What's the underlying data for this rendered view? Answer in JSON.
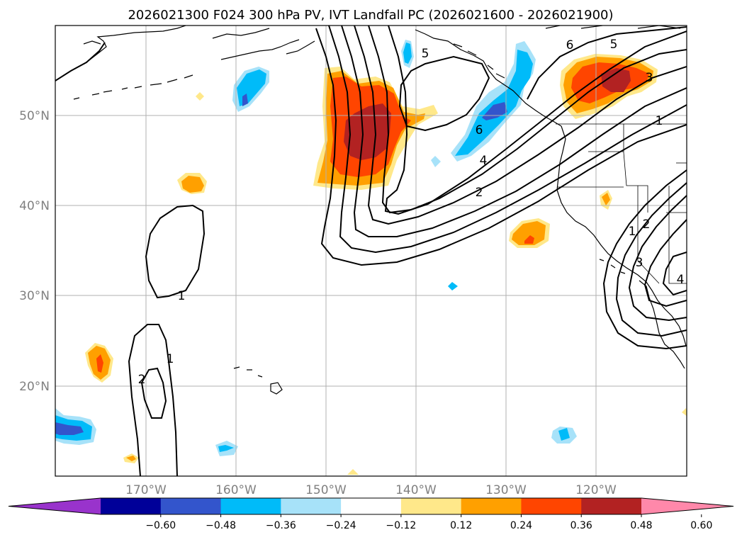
{
  "chart_data": {
    "type": "map_contour_overlay",
    "title": "2026021300 F024 300 hPa PV, IVT Landfall PC (2026021600 - 2026021900)",
    "lon_range": [
      180,
      110
    ],
    "lat_range": [
      10,
      60
    ],
    "lon_ticks": [
      {
        "value": 170,
        "label": "170°W"
      },
      {
        "value": 160,
        "label": "160°W"
      },
      {
        "value": 150,
        "label": "150°W"
      },
      {
        "value": 140,
        "label": "140°W"
      },
      {
        "value": 130,
        "label": "130°W"
      },
      {
        "value": 120,
        "label": "120°W"
      }
    ],
    "lat_ticks": [
      {
        "value": 20,
        "label": "20°N"
      },
      {
        "value": 30,
        "label": "30°N"
      },
      {
        "value": 40,
        "label": "40°N"
      },
      {
        "value": 50,
        "label": "50°N"
      }
    ],
    "colorbar": {
      "ticks": [
        "−0.60",
        "−0.48",
        "−0.36",
        "−0.24",
        "−0.12",
        "0.12",
        "0.24",
        "0.36",
        "0.48",
        "0.60"
      ],
      "colors": [
        "#9933cc",
        "#000099",
        "#3355cc",
        "#00bbf9",
        "#a7e2f9",
        "#ffffff",
        "#ffe88a",
        "#ffa000",
        "#ff4500",
        "#b22222",
        "#ff88aa"
      ],
      "extend": "both"
    },
    "shaded_anomalies": [
      {
        "name": "north-pacific-trough-positive",
        "lon": -146,
        "lat": 47,
        "peak": 0.48,
        "sign": "positive"
      },
      {
        "name": "bc-negative",
        "lon": -131,
        "lat": 50,
        "peak": -0.36,
        "sign": "negative"
      },
      {
        "name": "alberta-positive",
        "lon": -118,
        "lat": 55,
        "peak": 0.48,
        "sign": "positive"
      },
      {
        "name": "aleutian-negative",
        "lon": -159,
        "lat": 52,
        "peak": -0.36,
        "sign": "negative"
      },
      {
        "name": "offshore-positive",
        "lon": -129,
        "lat": 37,
        "peak": 0.36,
        "sign": "positive"
      },
      {
        "name": "subtropical-positive",
        "lon": -175,
        "lat": 22,
        "peak": 0.36,
        "sign": "positive"
      },
      {
        "name": "southwest-negative",
        "lon": -178,
        "lat": 15,
        "peak": -0.36,
        "sign": "negative"
      }
    ],
    "contour_labels": [
      "1",
      "1",
      "2",
      "2",
      "4",
      "5",
      "6",
      "6",
      "5",
      "3",
      "1",
      "1",
      "2",
      "3",
      "4"
    ]
  }
}
